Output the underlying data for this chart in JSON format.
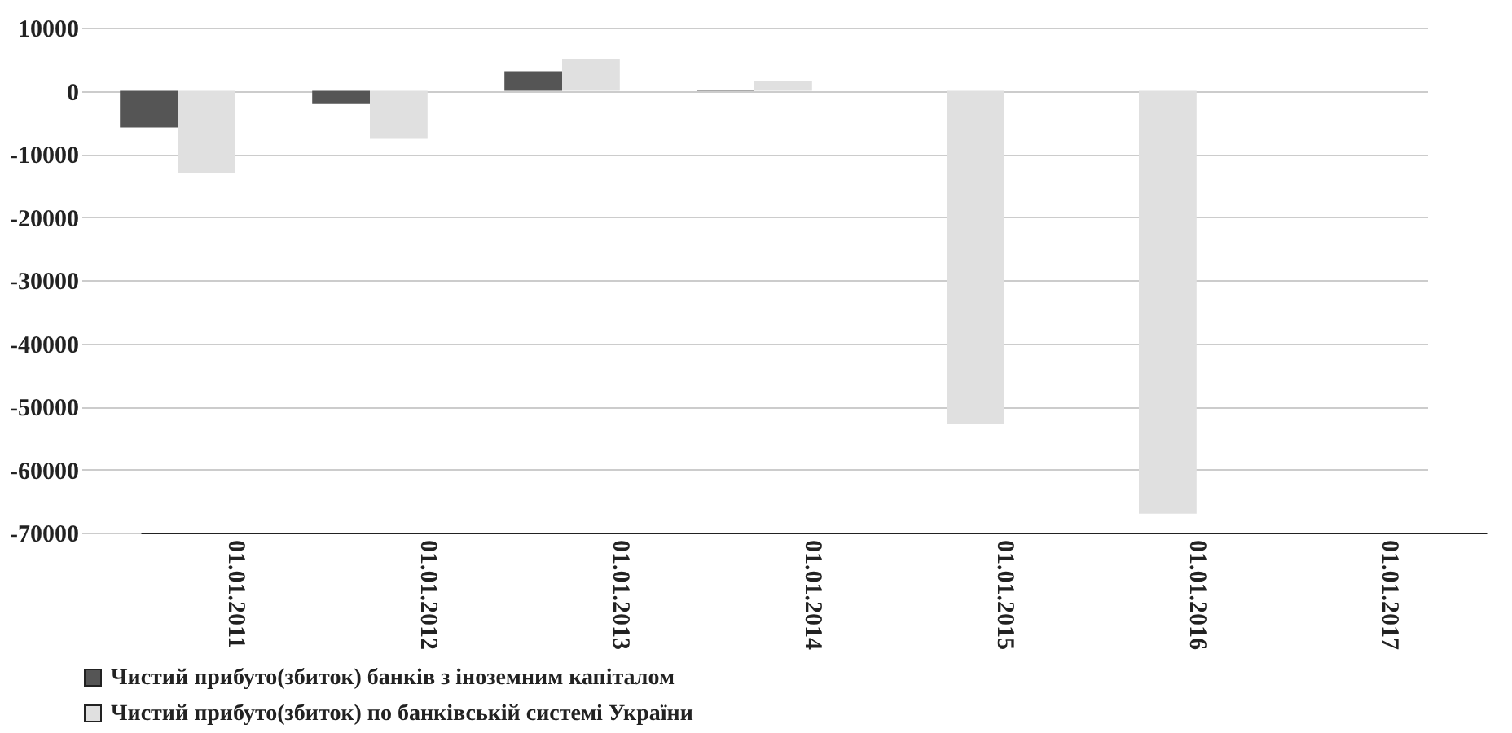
{
  "chart_data": {
    "type": "bar",
    "categories": [
      "01.01.2011",
      "01.01.2012",
      "01.01.2013",
      "01.01.2014",
      "01.01.2015",
      "01.01.2016",
      "01.01.2017"
    ],
    "series": [
      {
        "name": "Чистий прибуто(збиток) банків з іноземним капіталом",
        "color": "#555555",
        "values": [
          -5800,
          -2100,
          3100,
          200,
          0,
          0,
          0
        ]
      },
      {
        "name": "Чистий прибуто(збиток) по банківській системі України",
        "color": "#e0e0e0",
        "values": [
          -13000,
          -7600,
          5000,
          1500,
          -52700,
          -67000,
          null
        ]
      }
    ],
    "ylim": [
      -70000,
      10000
    ],
    "yticks": [
      -70000,
      -60000,
      -50000,
      -40000,
      -30000,
      -20000,
      -10000,
      0,
      10000
    ],
    "grid": "y",
    "legend": "bottom"
  }
}
